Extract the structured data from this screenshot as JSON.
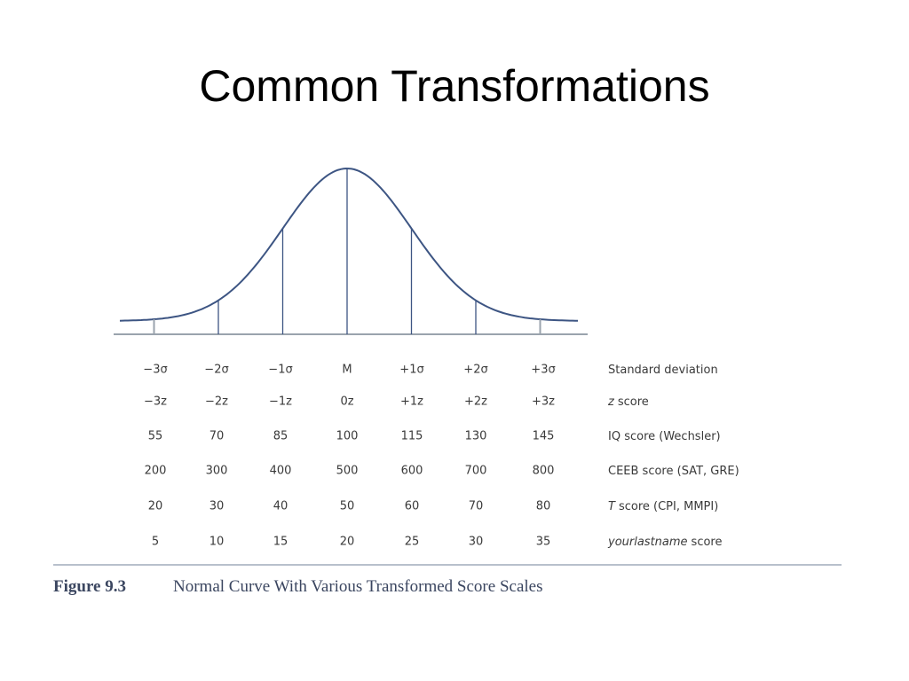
{
  "title": "Common Transformations",
  "figure": {
    "rows": [
      {
        "cells": [
          "−3σ",
          "−2σ",
          "−1σ",
          "M",
          "+1σ",
          "+2σ",
          "+3σ"
        ],
        "label": "Standard deviation"
      },
      {
        "cells": [
          "−3z",
          "−2z",
          "−1z",
          "0z",
          "+1z",
          "+2z",
          "+3z"
        ],
        "label_em": "z",
        "label": "score"
      },
      {
        "cells": [
          "55",
          "70",
          "85",
          "100",
          "115",
          "130",
          "145"
        ],
        "label": "IQ score (Wechsler)"
      },
      {
        "cells": [
          "200",
          "300",
          "400",
          "500",
          "600",
          "700",
          "800"
        ],
        "label": "CEEB score (SAT, GRE)"
      },
      {
        "cells": [
          "20",
          "30",
          "40",
          "50",
          "60",
          "70",
          "80"
        ],
        "label_em": "T",
        "label": "score (CPI, MMPI)"
      },
      {
        "cells": [
          "5",
          "10",
          "15",
          "20",
          "25",
          "30",
          "35"
        ],
        "label_em": "yourlastname",
        "label": "score"
      }
    ],
    "caption_number": "Figure 9.3",
    "caption_text": "Normal Curve With Various Transformed Score Scales"
  }
}
